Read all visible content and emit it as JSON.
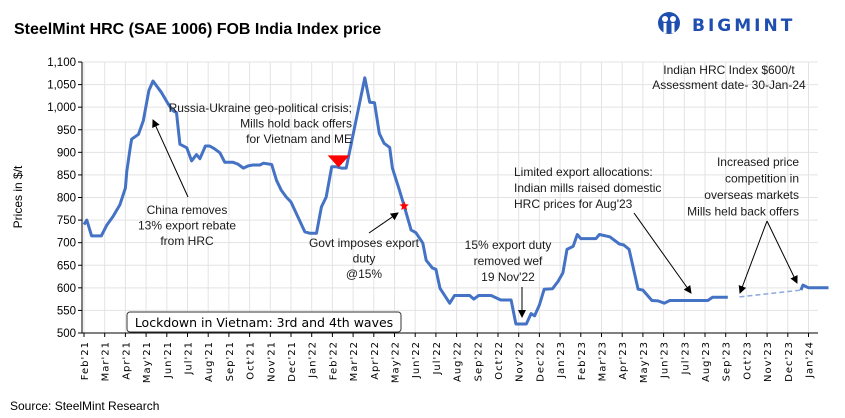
{
  "chart_data": {
    "type": "line",
    "title": "SteelMint HRC (SAE 1006) FOB India Index price",
    "ylabel": "Prices in $/t",
    "xlabel": "",
    "ylim": [
      500,
      1100
    ],
    "yticks": [
      "500",
      "550",
      "600",
      "650",
      "700",
      "750",
      "800",
      "850",
      "900",
      "950",
      "1,000",
      "1,050",
      "1,100"
    ],
    "ytick_values": [
      500,
      550,
      600,
      650,
      700,
      750,
      800,
      850,
      900,
      950,
      1000,
      1050,
      1100
    ],
    "xticks": [
      "Feb'21",
      "Mar'21",
      "Apr'21",
      "May'21",
      "Jun'21",
      "Jul'21",
      "Aug'21",
      "Sep'21",
      "Oct'21",
      "Nov'21",
      "Dec'21",
      "Jan'22",
      "Feb'22",
      "Mar'22",
      "Apr'22",
      "May'22",
      "Jun'22",
      "Jul'22",
      "Aug'22",
      "Sep'22",
      "Oct'22",
      "Nov'22",
      "Dec'22",
      "Jan'23",
      "Feb'23",
      "Mar'23",
      "Apr'23",
      "May'23",
      "Jun'23",
      "Jul'23",
      "Aug'23",
      "Sep'23",
      "Oct'23",
      "Nov'23",
      "Dec'23",
      "Jan'24"
    ],
    "grid": true,
    "line_color": "#4472C4",
    "series_solid_1": [
      [
        "2021-02-01",
        740
      ],
      [
        "2021-02-05",
        750
      ],
      [
        "2021-02-12",
        715
      ],
      [
        "2021-02-26",
        715
      ],
      [
        "2021-03-04",
        739
      ],
      [
        "2021-03-13",
        758
      ],
      [
        "2021-03-23",
        784
      ],
      [
        "2021-04-01",
        821
      ],
      [
        "2021-04-03",
        858
      ],
      [
        "2021-04-08",
        910
      ],
      [
        "2021-04-10",
        929
      ],
      [
        "2021-04-20",
        940
      ],
      [
        "2021-04-27",
        970
      ],
      [
        "2021-05-05",
        1037
      ],
      [
        "2021-05-11",
        1058
      ],
      [
        "2021-05-23",
        1033
      ],
      [
        "2021-06-03",
        1007
      ],
      [
        "2021-06-10",
        992
      ],
      [
        "2021-06-15",
        988
      ],
      [
        "2021-06-20",
        918
      ],
      [
        "2021-06-30",
        910
      ],
      [
        "2021-07-07",
        881
      ],
      [
        "2021-07-14",
        895
      ],
      [
        "2021-07-19",
        886
      ],
      [
        "2021-07-27",
        914
      ],
      [
        "2021-08-03",
        914
      ],
      [
        "2021-08-10",
        908
      ],
      [
        "2021-08-18",
        899
      ],
      [
        "2021-08-25",
        878
      ],
      [
        "2021-09-07",
        878
      ],
      [
        "2021-09-14",
        874
      ],
      [
        "2021-09-22",
        865
      ],
      [
        "2021-09-29",
        870
      ],
      [
        "2021-10-06",
        872
      ],
      [
        "2021-10-16",
        872
      ],
      [
        "2021-10-21",
        876
      ],
      [
        "2021-11-03",
        873
      ],
      [
        "2021-11-10",
        838
      ],
      [
        "2021-11-17",
        816
      ],
      [
        "2021-11-24",
        801
      ],
      [
        "2021-12-01",
        790
      ],
      [
        "2021-12-11",
        757
      ],
      [
        "2021-12-21",
        724
      ],
      [
        "2021-12-28",
        721
      ],
      [
        "2022-01-08",
        721
      ],
      [
        "2022-01-15",
        779
      ],
      [
        "2022-01-22",
        801
      ],
      [
        "2022-01-30",
        868
      ],
      [
        "2022-02-07",
        868
      ],
      [
        "2022-02-14",
        865
      ],
      [
        "2022-02-21",
        865
      ],
      [
        "2022-03-18",
        1065
      ],
      [
        "2022-03-25",
        1011
      ],
      [
        "2022-04-02",
        1010
      ],
      [
        "2022-04-09",
        942
      ],
      [
        "2022-04-16",
        920
      ],
      [
        "2022-04-24",
        911
      ],
      [
        "2022-04-28",
        865
      ],
      [
        "2022-05-08",
        817
      ],
      [
        "2022-05-15",
        781
      ],
      [
        "2022-05-25",
        728
      ],
      [
        "2022-06-02",
        722
      ],
      [
        "2022-06-12",
        699
      ],
      [
        "2022-06-17",
        661
      ],
      [
        "2022-06-26",
        644
      ],
      [
        "2022-07-01",
        641
      ],
      [
        "2022-07-07",
        599
      ],
      [
        "2022-07-21",
        566
      ],
      [
        "2022-07-28",
        583
      ],
      [
        "2022-08-20",
        583
      ],
      [
        "2022-08-26",
        575
      ],
      [
        "2022-09-03",
        583
      ],
      [
        "2022-09-21",
        583
      ],
      [
        "2022-10-05",
        573
      ],
      [
        "2022-10-20",
        573
      ],
      [
        "2022-10-27",
        520
      ],
      [
        "2022-11-12",
        520
      ],
      [
        "2022-11-19",
        543
      ],
      [
        "2022-11-24",
        538
      ],
      [
        "2022-12-01",
        562
      ],
      [
        "2022-12-08",
        597
      ],
      [
        "2022-12-20",
        598
      ],
      [
        "2022-12-28",
        614
      ],
      [
        "2023-01-05",
        633
      ],
      [
        "2023-01-11",
        685
      ],
      [
        "2023-01-20",
        692
      ],
      [
        "2023-01-26",
        718
      ],
      [
        "2023-02-01",
        709
      ],
      [
        "2023-02-23",
        709
      ],
      [
        "2023-02-28",
        718
      ],
      [
        "2023-03-13",
        713
      ],
      [
        "2023-03-27",
        697
      ],
      [
        "2023-04-03",
        695
      ],
      [
        "2023-04-11",
        685
      ],
      [
        "2023-04-24",
        597
      ],
      [
        "2023-05-01",
        595
      ],
      [
        "2023-05-14",
        572
      ],
      [
        "2023-05-23",
        571
      ],
      [
        "2023-06-02",
        566
      ],
      [
        "2023-06-10",
        572
      ],
      [
        "2023-08-05",
        572
      ],
      [
        "2023-08-12",
        579
      ],
      [
        "2023-09-04",
        579
      ]
    ],
    "series_dashed": [
      [
        "2023-09-21",
        580
      ],
      [
        "2023-12-20",
        595
      ]
    ],
    "series_solid_2": [
      [
        "2023-12-20",
        595
      ],
      [
        "2023-12-23",
        606
      ],
      [
        "2023-12-31",
        600
      ],
      [
        "2024-01-30",
        600
      ]
    ],
    "markers": [
      {
        "type": "triangle-down",
        "color": "#FF0000",
        "date": "2022-02-10",
        "value": 880
      },
      {
        "type": "star",
        "color": "#FF0000",
        "date": "2022-05-15",
        "value": 781
      }
    ],
    "annotations": {
      "russia": [
        "Russia-Ukraine geo-political crisis;",
        "Mills hold back offers",
        "for Vietnam and ME"
      ],
      "china": [
        "China removes",
        "13% export rebate",
        "from HRC"
      ],
      "govt": [
        "Govt imposes export",
        "duty",
        "@15%"
      ],
      "lockdown": "Lockdown in Vietnam: 3rd and 4th waves",
      "index": [
        "Indian HRC Index $600/t",
        "Assessment date- 30-Jan-24"
      ],
      "limited": [
        "Limited export allocations:",
        "Indian mills raised domestic",
        "HRC prices for Aug'23"
      ],
      "removed": [
        "15% export duty",
        "removed wef",
        "19 Nov'22"
      ],
      "increased": [
        "Increased price",
        "competition in",
        "overseas markets",
        "Mills held back offers"
      ]
    }
  },
  "logo": {
    "text": "BIGMINT",
    "color": "#1E4FB0"
  },
  "source": "Source: SteelMint Research"
}
